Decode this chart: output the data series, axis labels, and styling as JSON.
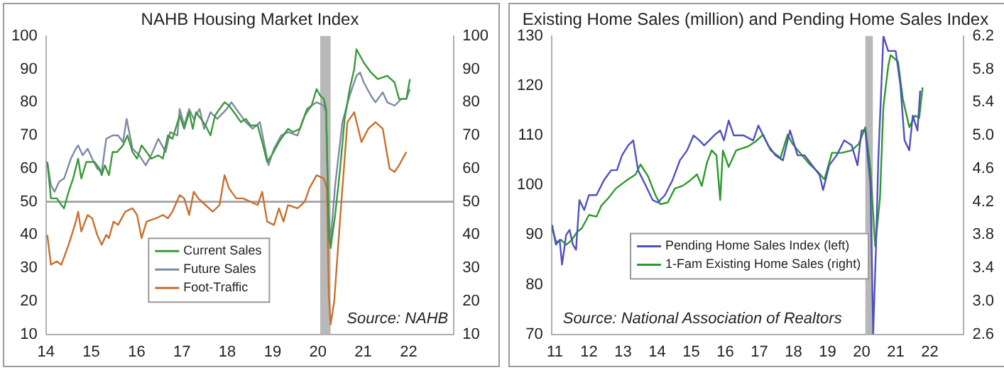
{
  "chart_data": [
    {
      "type": "line",
      "title": "NAHB Housing Market Index",
      "xlim": [
        14,
        23
      ],
      "xticks": [
        14,
        15,
        16,
        17,
        18,
        19,
        20,
        21,
        22
      ],
      "ylim": [
        10,
        100
      ],
      "yticks": [
        10,
        20,
        30,
        40,
        50,
        60,
        70,
        80,
        90,
        100
      ],
      "y2lim": [
        10,
        100
      ],
      "y2ticks": [
        10,
        20,
        30,
        40,
        50,
        60,
        70,
        80,
        90,
        100
      ],
      "grid": false,
      "legend": "bottom left",
      "ref_lines": [
        {
          "axis": "y",
          "value": 50,
          "label": null,
          "color": "#a0a0a0"
        }
      ],
      "bands": [
        {
          "axis": "x",
          "from": 20.05,
          "to": 20.28,
          "label": null,
          "color": "#b8b8b8"
        }
      ],
      "annotations": [
        "Source: NAHB"
      ],
      "series": [
        {
          "name": "Current Sales",
          "color": "#3a9a3a",
          "x": [
            14.03,
            14.11,
            14.24,
            14.34,
            14.4,
            14.5,
            14.6,
            14.71,
            14.78,
            14.89,
            15.07,
            15.18,
            15.23,
            15.3,
            15.39,
            15.47,
            15.57,
            15.7,
            15.8,
            15.91,
            16.01,
            16.11,
            16.22,
            16.32,
            16.48,
            16.58,
            16.69,
            16.79,
            16.95,
            17.05,
            17.16,
            17.24,
            17.31,
            17.42,
            17.52,
            17.63,
            17.73,
            17.83,
            17.94,
            18.04,
            18.2,
            18.3,
            18.41,
            18.51,
            18.67,
            18.77,
            18.88,
            18.98,
            19.14,
            19.34,
            19.45,
            19.6,
            19.76,
            19.86,
            19.97,
            20.05,
            20.13,
            20.18,
            20.24,
            20.28,
            20.38,
            20.49,
            20.59,
            20.7,
            20.8,
            20.85,
            21.01,
            21.17,
            21.32,
            21.53,
            21.69,
            21.79,
            21.95,
            22.03
          ],
          "values": [
            62,
            51,
            51,
            49,
            48,
            53,
            57,
            63,
            57,
            62,
            62,
            60,
            58,
            61,
            58,
            65,
            65,
            67,
            70,
            65,
            63,
            67,
            65,
            63,
            64,
            63,
            70,
            69,
            76,
            72,
            77,
            72,
            77,
            75,
            73,
            70,
            76,
            78,
            80,
            79,
            76,
            74,
            75,
            73,
            73,
            68,
            62,
            64,
            68,
            72,
            71,
            72,
            78,
            79,
            84,
            82,
            81,
            78,
            40,
            36,
            46,
            60,
            75,
            84,
            90,
            96,
            92,
            89,
            87,
            88,
            86,
            81,
            81,
            87
          ]
        },
        {
          "name": "Future Sales",
          "color": "#7d8aa5",
          "x": [
            14.03,
            14.11,
            14.19,
            14.29,
            14.4,
            14.55,
            14.66,
            14.71,
            14.81,
            14.92,
            15.02,
            15.13,
            15.23,
            15.33,
            15.47,
            15.59,
            15.7,
            15.78,
            15.91,
            16.06,
            16.2,
            16.32,
            16.48,
            16.64,
            16.74,
            16.9,
            16.95,
            17.05,
            17.16,
            17.26,
            17.39,
            17.49,
            17.63,
            17.78,
            17.99,
            18.09,
            18.25,
            18.41,
            18.56,
            18.72,
            18.91,
            19.03,
            19.19,
            19.34,
            19.55,
            19.71,
            19.86,
            19.97,
            20.13,
            20.18,
            20.24,
            20.28,
            20.38,
            20.54,
            20.7,
            20.85,
            20.93,
            21.01,
            21.17,
            21.27,
            21.43,
            21.53,
            21.69,
            21.84,
            21.95,
            22.03
          ],
          "values": [
            62,
            55,
            53,
            56,
            57,
            63,
            66,
            67,
            64,
            66,
            63,
            60,
            59,
            69,
            70,
            70,
            68,
            75,
            66,
            64,
            61,
            64,
            69,
            65,
            71,
            70,
            78,
            73,
            78,
            75,
            78,
            72,
            77,
            75,
            78,
            80,
            77,
            74,
            72,
            74,
            61,
            66,
            70,
            71,
            70,
            76,
            79,
            80,
            79,
            77,
            45,
            38,
            55,
            74,
            82,
            88,
            89,
            86,
            82,
            80,
            83,
            80,
            79,
            81,
            81,
            84
          ]
        },
        {
          "name": "Foot-Traffic",
          "color": "#c8702f",
          "x": [
            14.03,
            14.11,
            14.24,
            14.34,
            14.5,
            14.66,
            14.71,
            14.78,
            14.92,
            15.02,
            15.13,
            15.23,
            15.33,
            15.39,
            15.49,
            15.59,
            15.75,
            15.91,
            16.01,
            16.11,
            16.22,
            16.43,
            16.58,
            16.69,
            16.79,
            16.95,
            17.05,
            17.16,
            17.26,
            17.36,
            17.52,
            17.68,
            17.83,
            17.94,
            18.04,
            18.2,
            18.35,
            18.51,
            18.67,
            18.77,
            18.88,
            19.03,
            19.14,
            19.24,
            19.34,
            19.55,
            19.71,
            19.81,
            19.97,
            20.13,
            20.2,
            20.24,
            20.28,
            20.36,
            20.49,
            20.65,
            20.8,
            20.96,
            21.11,
            21.27,
            21.43,
            21.58,
            21.69,
            21.79,
            21.95
          ],
          "values": [
            40,
            31,
            32,
            31,
            37,
            44,
            47,
            41,
            46,
            45,
            40,
            37,
            40,
            39,
            44,
            43,
            47,
            48,
            46,
            39,
            44,
            45,
            46,
            45,
            47,
            52,
            51,
            46,
            53,
            51,
            49,
            47,
            49,
            58,
            54,
            51,
            51,
            50,
            49,
            53,
            44,
            43,
            48,
            44,
            49,
            48,
            50,
            54,
            58,
            57,
            54,
            22,
            13,
            20,
            45,
            74,
            77,
            68,
            72,
            74,
            72,
            60,
            59,
            61,
            65
          ]
        }
      ]
    },
    {
      "type": "line",
      "title": "Existing Home Sales (million) and Pending Home Sales Index",
      "xlim": [
        10.9,
        23
      ],
      "xticks": [
        11,
        12,
        13,
        14,
        15,
        16,
        17,
        18,
        19,
        20,
        21,
        22
      ],
      "ylim": [
        70,
        130
      ],
      "yticks": [
        70,
        80,
        90,
        100,
        110,
        120,
        130
      ],
      "y2lim": [
        2.6,
        6.2
      ],
      "y2ticks": [
        {
          "value": 2.6,
          "label": "2.6"
        },
        {
          "value": 3.0,
          "label": "3.0"
        },
        {
          "value": 3.4,
          "label": "3.4"
        },
        {
          "value": 3.8,
          "label": "3.8"
        },
        {
          "value": 4.2,
          "label": "4.2"
        },
        {
          "value": 4.6,
          "label": "4.6"
        },
        {
          "value": 5.0,
          "label": "5.0"
        },
        {
          "value": 5.4,
          "label": "5.4"
        },
        {
          "value": 5.8,
          "label": "5.8"
        },
        {
          "value": 6.2,
          "label": "6.2"
        }
      ],
      "grid": false,
      "legend": "left",
      "bands": [
        {
          "axis": "x",
          "from": 20.11,
          "to": 20.33,
          "label": null,
          "color": "#b8b8b8"
        }
      ],
      "annotations": [
        "Source: National Association of Realtors"
      ],
      "series": [
        {
          "name": "Pending Home Sales Index (left)",
          "color": "#5050c0",
          "x": [
            10.92,
            11.03,
            11.14,
            11.21,
            11.33,
            11.43,
            11.53,
            11.62,
            11.72,
            11.86,
            12.0,
            12.22,
            12.44,
            12.65,
            12.82,
            12.97,
            13.15,
            13.3,
            13.44,
            13.66,
            13.87,
            14.02,
            14.23,
            14.45,
            14.67,
            14.88,
            15.07,
            15.24,
            15.38,
            15.53,
            15.67,
            15.85,
            15.96,
            16.1,
            16.25,
            16.54,
            16.82,
            16.97,
            17.11,
            17.26,
            17.47,
            17.69,
            17.9,
            18.12,
            18.33,
            18.55,
            18.77,
            18.87,
            19.05,
            19.27,
            19.49,
            19.71,
            19.88,
            20.0,
            20.11,
            20.26,
            20.34,
            20.42,
            20.49,
            20.64,
            20.78,
            21.0,
            21.14,
            21.26,
            21.4,
            21.5,
            21.64,
            21.72
          ],
          "values": [
            92,
            88,
            89,
            84,
            90,
            91,
            88,
            87,
            97,
            95,
            98,
            98,
            101,
            103,
            103,
            106,
            108,
            109,
            103,
            100,
            97,
            96.5,
            98,
            101,
            105,
            107,
            110,
            109,
            108,
            109,
            110,
            111,
            109,
            113,
            110,
            110,
            109,
            112,
            110,
            108,
            106,
            105,
            111,
            106,
            106,
            104,
            102,
            99,
            104,
            106,
            109,
            108,
            104,
            111,
            111,
            100,
            70,
            87,
            105,
            130,
            127,
            127,
            120,
            109,
            107,
            114,
            111,
            119
          ]
        },
        {
          "name": "1-Fam Existing Home Sales (right)",
          "color": "#2a9a2a",
          "axis": "y2",
          "x": [
            10.92,
            11.04,
            11.18,
            11.33,
            11.5,
            11.64,
            11.79,
            12.0,
            12.22,
            12.36,
            12.58,
            12.79,
            13.08,
            13.37,
            13.51,
            13.73,
            13.95,
            14.09,
            14.31,
            14.52,
            14.74,
            14.95,
            15.17,
            15.31,
            15.46,
            15.6,
            15.74,
            15.85,
            15.93,
            16.1,
            16.32,
            16.68,
            16.9,
            17.11,
            17.33,
            17.62,
            17.83,
            17.97,
            18.19,
            18.48,
            18.72,
            18.91,
            19.13,
            19.42,
            19.71,
            19.92,
            20.11,
            20.26,
            20.4,
            20.54,
            20.64,
            20.78,
            20.85,
            21.07,
            21.21,
            21.4,
            21.57,
            21.69,
            21.79
          ],
          "values": [
            3.87,
            3.71,
            3.74,
            3.68,
            3.74,
            3.83,
            3.88,
            4.04,
            4.02,
            4.15,
            4.25,
            4.36,
            4.45,
            4.53,
            4.65,
            4.51,
            4.28,
            4.17,
            4.19,
            4.36,
            4.39,
            4.45,
            4.53,
            4.39,
            4.67,
            4.82,
            4.76,
            4.22,
            4.82,
            4.62,
            4.82,
            4.87,
            4.93,
            5.01,
            4.82,
            4.73,
            5.01,
            4.9,
            4.79,
            4.65,
            4.56,
            4.47,
            4.79,
            4.79,
            4.82,
            4.9,
            5.1,
            4.59,
            3.66,
            4.25,
            5.35,
            5.83,
            5.97,
            5.89,
            5.44,
            5.1,
            5.24,
            5.21,
            5.58
          ]
        }
      ]
    }
  ]
}
